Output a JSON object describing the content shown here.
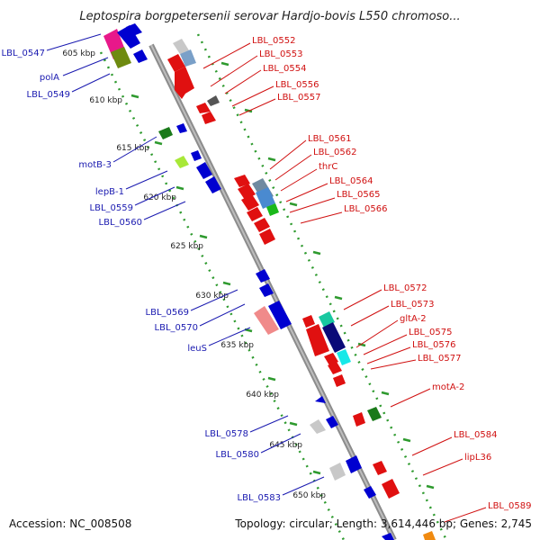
{
  "title": "Leptospira borgpetersenii serovar Hardjo-bovis L550 chromoso...",
  "footer": {
    "accession": "Accession: NC_008508",
    "topology": "Topology: circular; Length: 3,614,446 bp; Genes: 2,745"
  },
  "kbp_ticks": [
    "605 kbp",
    "610 kbp",
    "615 kbp",
    "620 kbp",
    "625 kbp",
    "630 kbp",
    "635 kbp",
    "640 kbp",
    "645 kbp",
    "650 kbp"
  ],
  "left_labels": [
    "LBL_0547",
    "polA",
    "LBL_0549",
    "motB-3",
    "lepB-1",
    "LBL_0559",
    "LBL_0560",
    "LBL_0569",
    "LBL_0570",
    "leuS",
    "LBL_0578",
    "LBL_0580",
    "LBL_0583"
  ],
  "right_labels": [
    "LBL_0552",
    "LBL_0553",
    "LBL_0554",
    "LBL_0556",
    "LBL_0557",
    "LBL_0561",
    "LBL_0562",
    "thrC",
    "LBL_0564",
    "LBL_0565",
    "LBL_0566",
    "LBL_0572",
    "LBL_0573",
    "gltA-2",
    "LBL_0575",
    "LBL_0576",
    "LBL_0577",
    "motA-2",
    "LBL_0584",
    "lipL36",
    "LBL_0589"
  ],
  "colors": {
    "forward_label": "#1a1ab0",
    "reverse_label": "#d01010",
    "backbone": "#8c8c8c",
    "dots": "#2e9a2e"
  }
}
